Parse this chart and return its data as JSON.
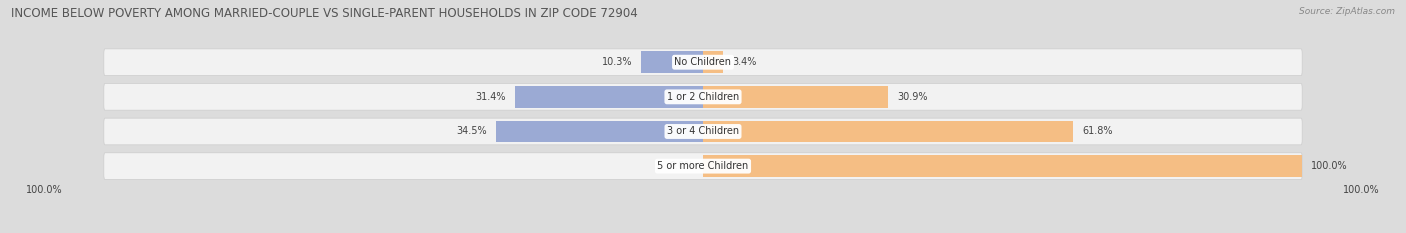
{
  "title": "INCOME BELOW POVERTY AMONG MARRIED-COUPLE VS SINGLE-PARENT HOUSEHOLDS IN ZIP CODE 72904",
  "source": "Source: ZipAtlas.com",
  "categories": [
    "No Children",
    "1 or 2 Children",
    "3 or 4 Children",
    "5 or more Children"
  ],
  "married_values": [
    10.3,
    31.4,
    34.5,
    0.0
  ],
  "single_values": [
    3.4,
    30.9,
    61.8,
    100.0
  ],
  "married_color": "#9BAAD4",
  "single_color": "#F5BE84",
  "bg_color": "#DCDCDC",
  "row_bg_color": "#F2F2F2",
  "title_fontsize": 8.5,
  "label_fontsize": 7.0,
  "cat_fontsize": 7.0,
  "axis_max": 100.0,
  "left_label": "100.0%",
  "right_label": "100.0%"
}
